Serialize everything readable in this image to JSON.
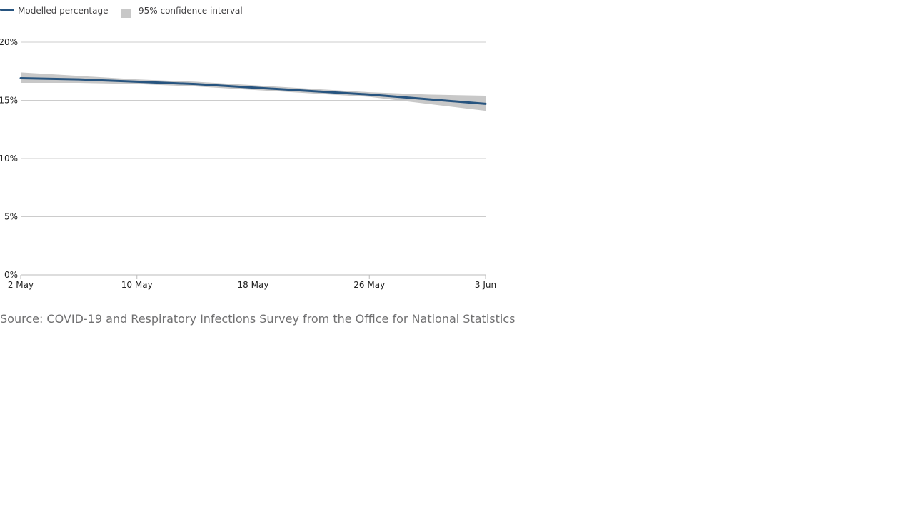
{
  "legend": {
    "line_label": "Modelled percentage",
    "band_label": "95% confidence interval"
  },
  "source": "Source: COVID-19 and Respiratory Infections Survey from the Office for National Statistics",
  "colors": {
    "line": "#27547f",
    "band": "#c8c8c8",
    "grid": "#cccccc",
    "axis": "#bbbbbb"
  },
  "chart_data": {
    "type": "line",
    "title": "",
    "xlabel": "",
    "ylabel": "",
    "x_ticks": [
      "2 May",
      "10 May",
      "18 May",
      "26 May",
      "3 Jun"
    ],
    "y_ticks": [
      "0%",
      "5%",
      "10%",
      "15%",
      "20%"
    ],
    "ylim": [
      0,
      20
    ],
    "x_range": [
      "2 May",
      "3 Jun"
    ],
    "grid": true,
    "legend_position": "top-left",
    "x": [
      "2 May",
      "6 May",
      "10 May",
      "14 May",
      "18 May",
      "22 May",
      "26 May",
      "30 May",
      "3 Jun"
    ],
    "series": [
      {
        "name": "Modelled percentage",
        "values": [
          16.9,
          16.8,
          16.6,
          16.4,
          16.1,
          15.8,
          15.5,
          15.1,
          14.7
        ]
      }
    ],
    "confidence_interval": {
      "name": "95% confidence interval",
      "lower": [
        16.5,
        16.5,
        16.4,
        16.2,
        15.9,
        15.6,
        15.3,
        14.7,
        14.1
      ],
      "upper": [
        17.4,
        17.1,
        16.8,
        16.6,
        16.3,
        16.0,
        15.7,
        15.5,
        15.4
      ]
    }
  }
}
